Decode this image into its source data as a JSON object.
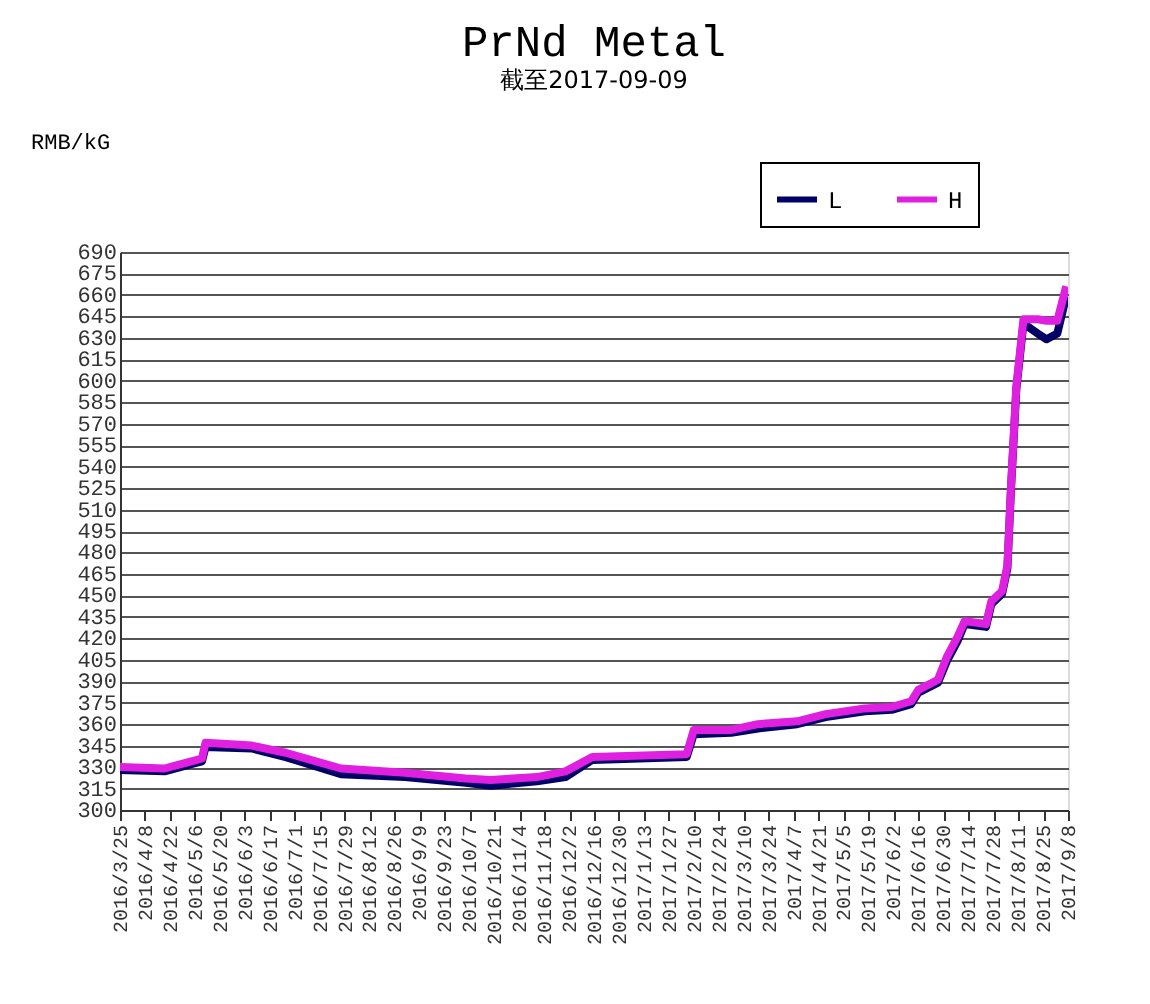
{
  "chart_data": {
    "type": "line",
    "title": "PrNd Metal",
    "subtitle": "截至2017-09-09",
    "ylabel": "RMB/kG",
    "x": [
      "2016-03-25",
      "2016-04-19",
      "2016-05-04",
      "2016-05-10",
      "2016-05-12",
      "2016-06-07",
      "2016-06-26",
      "2016-07-27",
      "2016-09-01",
      "2016-10-05",
      "2016-10-19",
      "2016-11-14",
      "2016-11-30",
      "2016-12-15",
      "2017-02-06",
      "2017-02-10",
      "2017-03-03",
      "2017-03-18",
      "2017-04-09",
      "2017-04-25",
      "2017-05-17",
      "2017-06-01",
      "2017-06-12",
      "2017-06-16",
      "2017-06-27",
      "2017-07-02",
      "2017-07-08",
      "2017-07-12",
      "2017-07-24",
      "2017-07-27",
      "2017-08-02",
      "2017-08-05",
      "2017-08-07",
      "2017-08-10",
      "2017-08-14",
      "2017-08-22",
      "2017-08-27",
      "2017-09-02",
      "2017-09-07"
    ],
    "series": [
      {
        "name": "L",
        "color": "#000066",
        "values": [
          328,
          327,
          332,
          334,
          344,
          343,
          337,
          325,
          323,
          319,
          317,
          320,
          323,
          335,
          337,
          353,
          354,
          357,
          360,
          365,
          369,
          370,
          374,
          382,
          389,
          404,
          418,
          430,
          428,
          444,
          451,
          469,
          524,
          594,
          640,
          633,
          629,
          633,
          659
        ]
      },
      {
        "name": "H",
        "color": "#e020e0",
        "values": [
          330,
          329,
          334,
          336,
          347,
          345,
          340,
          329,
          326,
          322,
          321,
          323,
          327,
          337,
          339,
          356,
          356,
          360,
          362,
          367,
          371,
          372,
          376,
          384,
          391,
          407,
          421,
          432,
          430,
          446,
          453,
          471,
          526,
          596,
          643,
          643,
          642,
          642,
          666
        ]
      }
    ],
    "ylim": [
      300,
      690
    ],
    "yticks": [
      300,
      315,
      330,
      345,
      360,
      375,
      390,
      405,
      420,
      435,
      450,
      465,
      480,
      495,
      510,
      525,
      540,
      555,
      570,
      585,
      600,
      615,
      630,
      645,
      660,
      675,
      690
    ],
    "xlim": [
      "2016-03-25",
      "2017-09-08"
    ],
    "xticks": [
      {
        "value": "2016-03-25",
        "label": "2016/3/25"
      },
      {
        "value": "2016-04-08",
        "label": "2016/4/8"
      },
      {
        "value": "2016-04-22",
        "label": "2016/4/22"
      },
      {
        "value": "2016-05-06",
        "label": "2016/5/6"
      },
      {
        "value": "2016-05-20",
        "label": "2016/5/20"
      },
      {
        "value": "2016-06-03",
        "label": "2016/6/3"
      },
      {
        "value": "2016-06-17",
        "label": "2016/6/17"
      },
      {
        "value": "2016-07-01",
        "label": "2016/7/1"
      },
      {
        "value": "2016-07-15",
        "label": "2016/7/15"
      },
      {
        "value": "2016-07-29",
        "label": "2016/7/29"
      },
      {
        "value": "2016-08-12",
        "label": "2016/8/12"
      },
      {
        "value": "2016-08-26",
        "label": "2016/8/26"
      },
      {
        "value": "2016-09-09",
        "label": "2016/9/9"
      },
      {
        "value": "2016-09-23",
        "label": "2016/9/23"
      },
      {
        "value": "2016-10-07",
        "label": "2016/10/7"
      },
      {
        "value": "2016-10-21",
        "label": "2016/10/21"
      },
      {
        "value": "2016-11-04",
        "label": "2016/11/4"
      },
      {
        "value": "2016-11-18",
        "label": "2016/11/18"
      },
      {
        "value": "2016-12-02",
        "label": "2016/12/2"
      },
      {
        "value": "2016-12-16",
        "label": "2016/12/16"
      },
      {
        "value": "2016-12-30",
        "label": "2016/12/30"
      },
      {
        "value": "2017-01-13",
        "label": "2017/1/13"
      },
      {
        "value": "2017-01-27",
        "label": "2017/1/27"
      },
      {
        "value": "2017-02-10",
        "label": "2017/2/10"
      },
      {
        "value": "2017-02-24",
        "label": "2017/2/24"
      },
      {
        "value": "2017-03-10",
        "label": "2017/3/10"
      },
      {
        "value": "2017-03-24",
        "label": "2017/3/24"
      },
      {
        "value": "2017-04-07",
        "label": "2017/4/7"
      },
      {
        "value": "2017-04-21",
        "label": "2017/4/21"
      },
      {
        "value": "2017-05-05",
        "label": "2017/5/5"
      },
      {
        "value": "2017-05-19",
        "label": "2017/5/19"
      },
      {
        "value": "2017-06-02",
        "label": "2017/6/2"
      },
      {
        "value": "2017-06-16",
        "label": "2017/6/16"
      },
      {
        "value": "2017-06-30",
        "label": "2017/6/30"
      },
      {
        "value": "2017-07-14",
        "label": "2017/7/14"
      },
      {
        "value": "2017-07-28",
        "label": "2017/7/28"
      },
      {
        "value": "2017-08-11",
        "label": "2017/8/11"
      },
      {
        "value": "2017-08-25",
        "label": "2017/8/25"
      },
      {
        "value": "2017-09-08",
        "label": "2017/9/8"
      }
    ],
    "grid": "y",
    "legend": "top right",
    "marker": "none",
    "line_style": "solid"
  }
}
